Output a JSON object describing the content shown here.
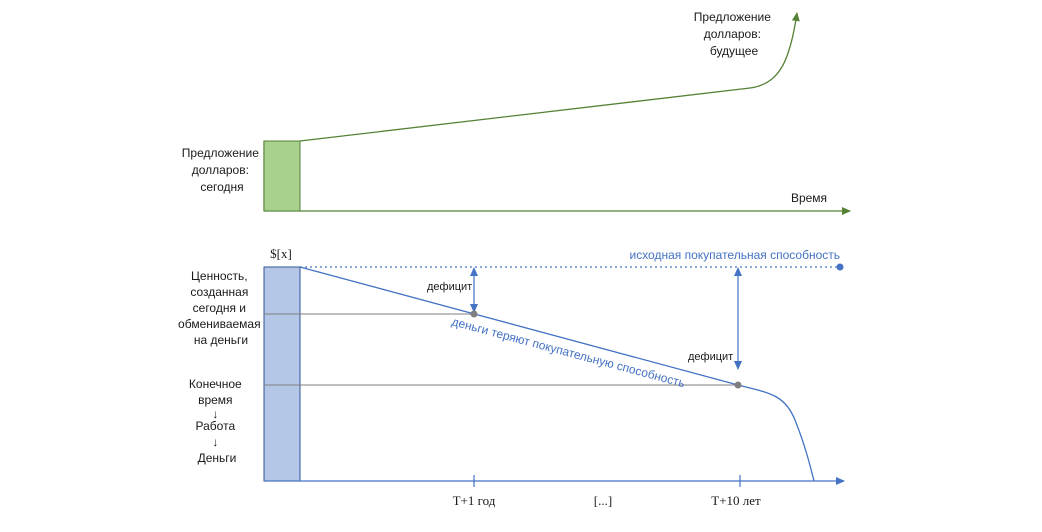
{
  "top_panel": {
    "supply_today_lines": [
      "Предложение",
      "долларов:",
      "сегодня"
    ],
    "supply_future_lines": [
      "Предложение",
      "долларов:",
      "будущее"
    ],
    "time_axis_label": "Время",
    "bar_color": "#a9d18e",
    "curve_color": "#548235"
  },
  "bottom_panel": {
    "bar_title": "$[x]",
    "value_lines": [
      "Ценность,",
      "созданная",
      "сегодня и",
      "обмениваемая",
      "на деньги"
    ],
    "chain_lines": [
      "Конечное",
      "время",
      "↓",
      "Работа",
      "↓",
      "Деньги"
    ],
    "original_power_label": "исходная покупательная способность",
    "losing_power_label": "деньги теряют покупательную способность",
    "deficit_label_1": "дефицит",
    "deficit_label_2": "дефицит",
    "tick_1": "T+1 год",
    "tick_ellipsis": "[...]",
    "tick_2": "T+10 лет",
    "bar_color": "#b4c7e7",
    "accent_color": "#4472c4",
    "point_color": "#7f7f7f"
  }
}
